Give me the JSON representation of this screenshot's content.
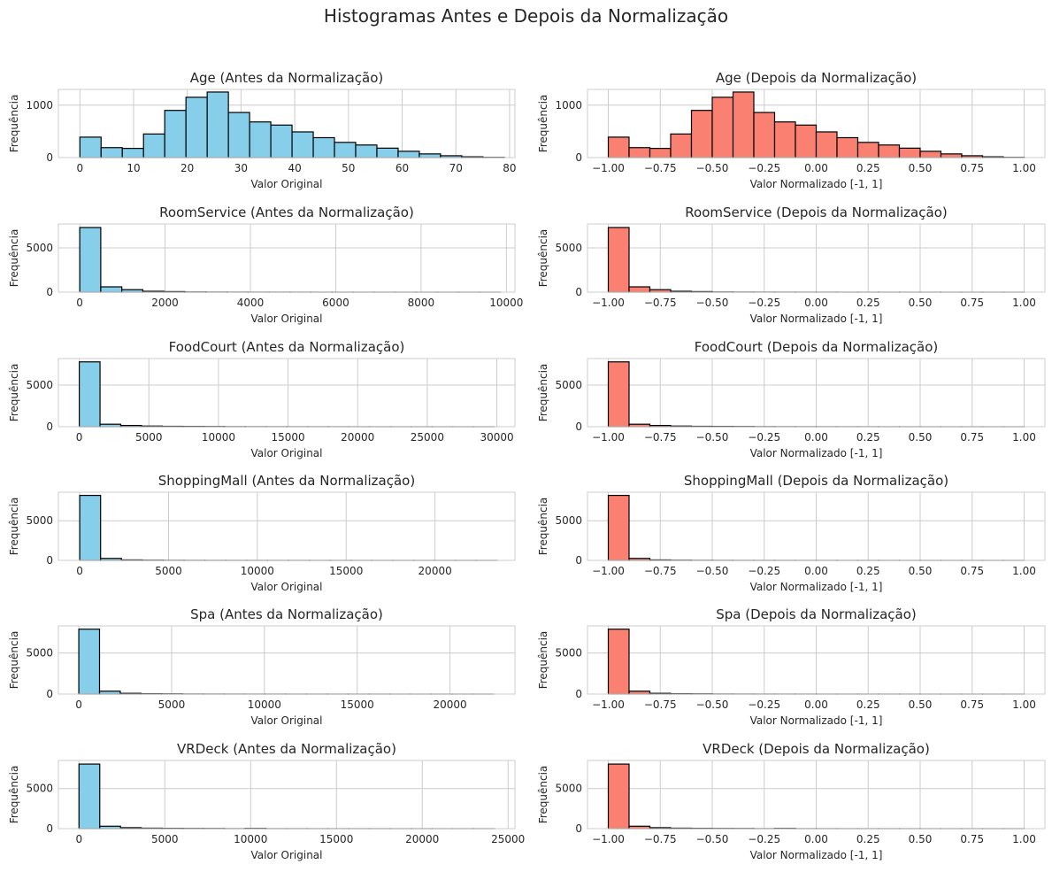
{
  "figure_title": "Histogramas Antes e Depois da Normalização",
  "colors": {
    "before_fill": "#87ceeb",
    "after_fill": "#fa8072",
    "bar_edge": "#000000",
    "grid": "#cccccc",
    "axes_edge": "#cccccc",
    "text": "#262626"
  },
  "chart_data": [
    {
      "type": "bar",
      "title": "Age (Antes da Normalização)",
      "xlabel": "Valor Original",
      "ylabel": "Frequência",
      "grid": true,
      "xlim": [
        -4,
        81
      ],
      "ylim": [
        0,
        1300
      ],
      "xticks": [
        0,
        10,
        20,
        30,
        40,
        50,
        60,
        70,
        80
      ],
      "yticks": [
        0,
        1000
      ],
      "bin_edges": [
        0,
        3.95,
        7.9,
        11.85,
        15.8,
        19.75,
        23.7,
        27.65,
        31.6,
        35.55,
        39.5,
        43.45,
        47.4,
        51.35,
        55.3,
        59.25,
        63.2,
        67.15,
        71.1,
        75.05,
        79
      ],
      "values": [
        390,
        190,
        175,
        450,
        900,
        1150,
        1250,
        860,
        680,
        620,
        490,
        380,
        290,
        240,
        180,
        120,
        70,
        35,
        15,
        5
      ],
      "series": "before"
    },
    {
      "type": "bar",
      "title": "Age (Depois da Normalização)",
      "xlabel": "Valor Normalizado [-1, 1]",
      "ylabel": "Frequência",
      "grid": true,
      "xlim": [
        -1.1,
        1.1
      ],
      "ylim": [
        0,
        1300
      ],
      "xticks": [
        -1.0,
        -0.75,
        -0.5,
        -0.25,
        0.0,
        0.25,
        0.5,
        0.75,
        1.0
      ],
      "yticks": [
        0,
        1000
      ],
      "bin_edges": [
        -1.0,
        -0.9,
        -0.8,
        -0.7,
        -0.6,
        -0.5,
        -0.4,
        -0.3,
        -0.2,
        -0.1,
        0.0,
        0.1,
        0.2,
        0.3,
        0.4,
        0.5,
        0.6,
        0.7,
        0.8,
        0.9,
        1.0
      ],
      "values": [
        390,
        190,
        175,
        450,
        900,
        1150,
        1250,
        860,
        680,
        620,
        490,
        380,
        290,
        240,
        180,
        120,
        70,
        35,
        15,
        5
      ],
      "series": "after"
    },
    {
      "type": "bar",
      "title": "RoomService (Antes da Normalização)",
      "xlabel": "Valor Original",
      "ylabel": "Frequência",
      "grid": true,
      "xlim": [
        -500,
        10200
      ],
      "ylim": [
        0,
        7700
      ],
      "xticks": [
        0,
        2000,
        4000,
        6000,
        8000,
        10000
      ],
      "yticks": [
        0,
        5000
      ],
      "bin_edges": [
        0,
        493,
        986,
        1479,
        1972,
        2465,
        2958,
        3451,
        3944,
        4437,
        4930,
        5423,
        5916,
        6409,
        6902,
        7395,
        7888,
        8381,
        8874,
        9367,
        9860
      ],
      "values": [
        7300,
        600,
        280,
        100,
        60,
        20,
        12,
        8,
        6,
        5,
        4,
        3,
        3,
        2,
        2,
        2,
        1,
        1,
        1,
        1
      ],
      "series": "before"
    },
    {
      "type": "bar",
      "title": "RoomService (Depois da Normalização)",
      "xlabel": "Valor Normalizado [-1, 1]",
      "ylabel": "Frequência",
      "grid": true,
      "xlim": [
        -1.1,
        1.1
      ],
      "ylim": [
        0,
        7700
      ],
      "xticks": [
        -1.0,
        -0.75,
        -0.5,
        -0.25,
        0.0,
        0.25,
        0.5,
        0.75,
        1.0
      ],
      "yticks": [
        0,
        5000
      ],
      "bin_edges": [
        -1.0,
        -0.9,
        -0.8,
        -0.7,
        -0.6,
        -0.5,
        -0.4,
        -0.3,
        -0.2,
        -0.1,
        0.0,
        0.1,
        0.2,
        0.3,
        0.4,
        0.5,
        0.6,
        0.7,
        0.8,
        0.9,
        1.0
      ],
      "values": [
        7300,
        600,
        280,
        100,
        60,
        20,
        12,
        8,
        6,
        5,
        4,
        3,
        3,
        2,
        2,
        2,
        1,
        1,
        1,
        1
      ],
      "series": "after"
    },
    {
      "type": "bar",
      "title": "FoodCourt (Antes da Normalização)",
      "xlabel": "Valor Original",
      "ylabel": "Frequência",
      "grid": true,
      "xlim": [
        -1500,
        31300
      ],
      "ylim": [
        0,
        8200
      ],
      "xticks": [
        0,
        5000,
        10000,
        15000,
        20000,
        25000,
        30000
      ],
      "yticks": [
        0,
        5000
      ],
      "bin_edges": [
        0,
        1491,
        2982,
        4473,
        5964,
        7455,
        8946,
        10437,
        11928,
        13419,
        14910,
        16401,
        17892,
        19383,
        20874,
        22365,
        23856,
        25347,
        26838,
        28329,
        29820
      ],
      "values": [
        7800,
        300,
        150,
        80,
        50,
        40,
        30,
        15,
        10,
        8,
        6,
        5,
        4,
        3,
        3,
        2,
        2,
        1,
        1,
        1
      ],
      "series": "before"
    },
    {
      "type": "bar",
      "title": "FoodCourt (Depois da Normalização)",
      "xlabel": "Valor Normalizado [-1, 1]",
      "ylabel": "Frequência",
      "grid": true,
      "xlim": [
        -1.1,
        1.1
      ],
      "ylim": [
        0,
        8200
      ],
      "xticks": [
        -1.0,
        -0.75,
        -0.5,
        -0.25,
        0.0,
        0.25,
        0.5,
        0.75,
        1.0
      ],
      "yticks": [
        0,
        5000
      ],
      "bin_edges": [
        -1.0,
        -0.9,
        -0.8,
        -0.7,
        -0.6,
        -0.5,
        -0.4,
        -0.3,
        -0.2,
        -0.1,
        0.0,
        0.1,
        0.2,
        0.3,
        0.4,
        0.5,
        0.6,
        0.7,
        0.8,
        0.9,
        1.0
      ],
      "values": [
        7800,
        300,
        150,
        80,
        50,
        40,
        30,
        15,
        10,
        8,
        6,
        5,
        4,
        3,
        3,
        2,
        2,
        1,
        1,
        1
      ],
      "series": "after"
    },
    {
      "type": "bar",
      "title": "ShoppingMall (Antes da Normalização)",
      "xlabel": "Valor Original",
      "ylabel": "Frequência",
      "grid": true,
      "xlim": [
        -1200,
        24500
      ],
      "ylim": [
        0,
        8600
      ],
      "xticks": [
        0,
        5000,
        10000,
        15000,
        20000
      ],
      "yticks": [
        0,
        5000
      ],
      "bin_edges": [
        0,
        1175,
        2350,
        3525,
        4700,
        5875,
        7050,
        8225,
        9400,
        10575,
        11750,
        12925,
        14100,
        15275,
        16450,
        17625,
        18800,
        19975,
        21150,
        22325,
        23500
      ],
      "values": [
        8200,
        250,
        60,
        30,
        15,
        10,
        6,
        5,
        4,
        3,
        3,
        2,
        2,
        2,
        1,
        1,
        1,
        1,
        1,
        1
      ],
      "series": "before"
    },
    {
      "type": "bar",
      "title": "ShoppingMall (Depois da Normalização)",
      "xlabel": "Valor Normalizado [-1, 1]",
      "ylabel": "Frequência",
      "grid": true,
      "xlim": [
        -1.1,
        1.1
      ],
      "ylim": [
        0,
        8600
      ],
      "xticks": [
        -1.0,
        -0.75,
        -0.5,
        -0.25,
        0.0,
        0.25,
        0.5,
        0.75,
        1.0
      ],
      "yticks": [
        0,
        5000
      ],
      "bin_edges": [
        -1.0,
        -0.9,
        -0.8,
        -0.7,
        -0.6,
        -0.5,
        -0.4,
        -0.3,
        -0.2,
        -0.1,
        0.0,
        0.1,
        0.2,
        0.3,
        0.4,
        0.5,
        0.6,
        0.7,
        0.8,
        0.9,
        1.0
      ],
      "values": [
        8200,
        250,
        60,
        30,
        15,
        10,
        6,
        5,
        4,
        3,
        3,
        2,
        2,
        2,
        1,
        1,
        1,
        1,
        1,
        1
      ],
      "series": "after"
    },
    {
      "type": "bar",
      "title": "Spa (Antes da Normalização)",
      "xlabel": "Valor Original",
      "ylabel": "Frequência",
      "grid": true,
      "xlim": [
        -1100,
        23500
      ],
      "ylim": [
        0,
        8300
      ],
      "xticks": [
        0,
        5000,
        10000,
        15000,
        20000
      ],
      "yticks": [
        0,
        5000
      ],
      "bin_edges": [
        0,
        1117,
        2234,
        3351,
        4468,
        5585,
        6702,
        7819,
        8936,
        10053,
        11170,
        12287,
        13404,
        14521,
        15638,
        16755,
        17872,
        18989,
        20106,
        21223,
        22340
      ],
      "values": [
        7900,
        350,
        90,
        40,
        30,
        12,
        8,
        6,
        5,
        4,
        3,
        3,
        2,
        2,
        2,
        1,
        1,
        1,
        1,
        1
      ],
      "series": "before"
    },
    {
      "type": "bar",
      "title": "Spa (Depois da Normalização)",
      "xlabel": "Valor Normalizado [-1, 1]",
      "ylabel": "Frequência",
      "grid": true,
      "xlim": [
        -1.1,
        1.1
      ],
      "ylim": [
        0,
        8300
      ],
      "xticks": [
        -1.0,
        -0.75,
        -0.5,
        -0.25,
        0.0,
        0.25,
        0.5,
        0.75,
        1.0
      ],
      "yticks": [
        0,
        5000
      ],
      "bin_edges": [
        -1.0,
        -0.9,
        -0.8,
        -0.7,
        -0.6,
        -0.5,
        -0.4,
        -0.3,
        -0.2,
        -0.1,
        0.0,
        0.1,
        0.2,
        0.3,
        0.4,
        0.5,
        0.6,
        0.7,
        0.8,
        0.9,
        1.0
      ],
      "values": [
        7900,
        350,
        90,
        40,
        30,
        12,
        8,
        6,
        5,
        4,
        3,
        3,
        2,
        2,
        2,
        1,
        1,
        1,
        1,
        1
      ],
      "series": "after"
    },
    {
      "type": "bar",
      "title": "VRDeck (Antes da Normalização)",
      "xlabel": "Valor Original",
      "ylabel": "Frequência",
      "grid": true,
      "xlim": [
        -1200,
        25400
      ],
      "ylim": [
        0,
        8500
      ],
      "xticks": [
        0,
        5000,
        10000,
        15000,
        20000,
        25000
      ],
      "yticks": [
        0,
        5000
      ],
      "bin_edges": [
        0,
        1210,
        2420,
        3630,
        4840,
        6050,
        7260,
        8470,
        9680,
        10890,
        12100,
        13310,
        14520,
        15730,
        16940,
        18150,
        19360,
        20570,
        21780,
        22990,
        24200
      ],
      "values": [
        8050,
        300,
        120,
        60,
        40,
        30,
        25,
        8,
        35,
        5,
        4,
        3,
        2,
        2,
        2,
        1,
        1,
        1,
        1,
        1
      ],
      "series": "before"
    },
    {
      "type": "bar",
      "title": "VRDeck (Depois da Normalização)",
      "xlabel": "Valor Normalizado [-1, 1]",
      "ylabel": "Frequência",
      "grid": true,
      "xlim": [
        -1.1,
        1.1
      ],
      "ylim": [
        0,
        8500
      ],
      "xticks": [
        -1.0,
        -0.75,
        -0.5,
        -0.25,
        0.0,
        0.25,
        0.5,
        0.75,
        1.0
      ],
      "yticks": [
        0,
        5000
      ],
      "bin_edges": [
        -1.0,
        -0.9,
        -0.8,
        -0.7,
        -0.6,
        -0.5,
        -0.4,
        -0.3,
        -0.2,
        -0.1,
        0.0,
        0.1,
        0.2,
        0.3,
        0.4,
        0.5,
        0.6,
        0.7,
        0.8,
        0.9,
        1.0
      ],
      "values": [
        8050,
        300,
        120,
        60,
        40,
        30,
        25,
        8,
        35,
        5,
        4,
        3,
        2,
        2,
        2,
        1,
        1,
        1,
        1,
        1
      ],
      "series": "after"
    }
  ]
}
